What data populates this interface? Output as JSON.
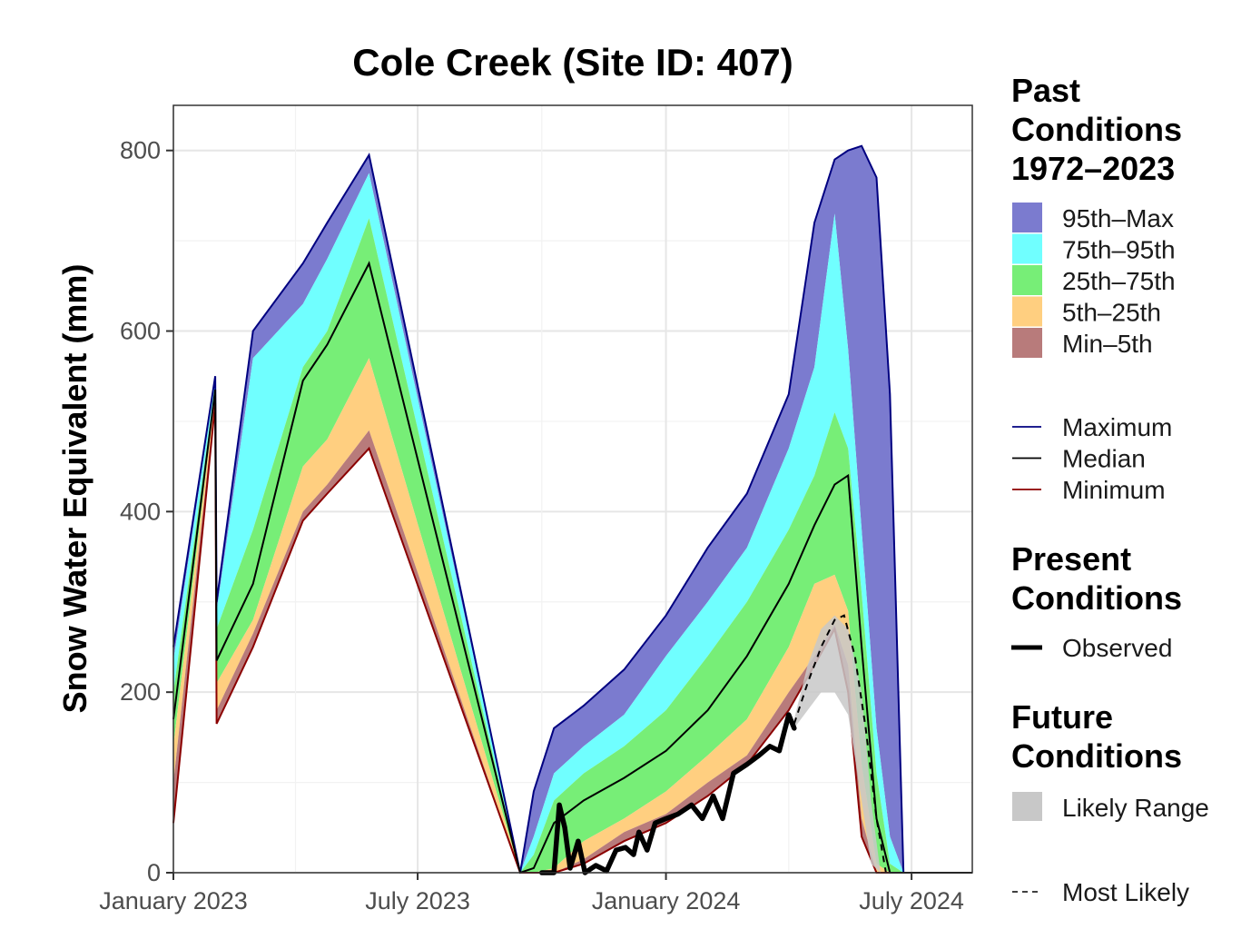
{
  "chart_data": {
    "type": "area",
    "title": "Cole Creek (Site ID: 407)",
    "ylabel": "Snow Water Equivalent (mm)",
    "xlabel": "",
    "x_start": "2023-01-01",
    "x_end": "2024-08-15",
    "ylim": [
      0,
      850
    ],
    "yticks": [
      0,
      200,
      400,
      600,
      800
    ],
    "xticks": [
      {
        "date": "2023-01-01",
        "label": "January 2023"
      },
      {
        "date": "2023-07-01",
        "label": "July 2023"
      },
      {
        "date": "2024-01-01",
        "label": "January 2024"
      },
      {
        "date": "2024-07-01",
        "label": "July 2024"
      }
    ],
    "grid": true,
    "legend_placement": "right",
    "colors": {
      "max_band": "#7B7BCF",
      "p95_band": "#70FFFF",
      "iqr_band": "#77EE77",
      "p5_band": "#FFCF80",
      "min_band": "#B87B7B",
      "likely_range": "#C8C8C8",
      "maximum_line": "#000080",
      "median_line": "#000000",
      "minimum_line": "#8B0000",
      "observed_line": "#000000"
    },
    "past_percentiles": {
      "dates": [
        "2023-01-01",
        "2023-02-01",
        "2023-02-02",
        "2023-03-01",
        "2023-04-07",
        "2023-04-25",
        "2023-05-26",
        "2023-09-15",
        "2023-09-25",
        "2023-10-10",
        "2023-11-01",
        "2023-12-01",
        "2024-01-01",
        "2024-02-01",
        "2024-03-01",
        "2024-04-01",
        "2024-04-20",
        "2024-05-05",
        "2024-05-15",
        "2024-05-25",
        "2024-06-05",
        "2024-06-15",
        "2024-06-25",
        "2024-07-05",
        "2024-08-15"
      ],
      "maximum": [
        250,
        550,
        300,
        600,
        675,
        720,
        795,
        0,
        90,
        160,
        185,
        225,
        285,
        360,
        420,
        530,
        720,
        790,
        800,
        805,
        770,
        530,
        0,
        0,
        0
      ],
      "p95": [
        235,
        545,
        290,
        570,
        630,
        680,
        775,
        0,
        40,
        110,
        140,
        175,
        240,
        300,
        360,
        470,
        560,
        730,
        580,
        380,
        160,
        40,
        0,
        0,
        0
      ],
      "p75": [
        200,
        540,
        270,
        380,
        560,
        600,
        725,
        0,
        20,
        80,
        110,
        140,
        180,
        240,
        300,
        380,
        440,
        510,
        470,
        310,
        110,
        10,
        0,
        0,
        0
      ],
      "median": [
        170,
        535,
        235,
        320,
        545,
        585,
        675,
        0,
        5,
        55,
        80,
        105,
        135,
        180,
        240,
        320,
        385,
        430,
        440,
        250,
        60,
        0,
        0,
        0,
        0
      ],
      "p25": [
        140,
        530,
        210,
        280,
        450,
        480,
        570,
        0,
        0,
        5,
        35,
        60,
        90,
        130,
        170,
        250,
        320,
        330,
        290,
        120,
        10,
        0,
        0,
        0,
        0
      ],
      "p5": [
        100,
        525,
        180,
        265,
        400,
        430,
        490,
        0,
        0,
        0,
        15,
        45,
        65,
        100,
        130,
        200,
        240,
        275,
        230,
        60,
        0,
        0,
        0,
        0,
        0
      ],
      "minimum": [
        55,
        520,
        165,
        250,
        390,
        420,
        470,
        0,
        0,
        0,
        10,
        35,
        55,
        85,
        120,
        180,
        230,
        270,
        200,
        40,
        0,
        0,
        0,
        0,
        0
      ]
    },
    "observed": {
      "dates": [
        "2023-10-01",
        "2023-10-10",
        "2023-10-14",
        "2023-10-18",
        "2023-10-22",
        "2023-10-28",
        "2023-11-02",
        "2023-11-10",
        "2023-11-18",
        "2023-11-25",
        "2023-12-02",
        "2023-12-08",
        "2023-12-12",
        "2023-12-18",
        "2023-12-24",
        "2024-01-01",
        "2024-01-10",
        "2024-01-20",
        "2024-01-28",
        "2024-02-05",
        "2024-02-12",
        "2024-02-20",
        "2024-03-01",
        "2024-03-10",
        "2024-03-18",
        "2024-03-25",
        "2024-04-01",
        "2024-04-05"
      ],
      "values": [
        0,
        0,
        75,
        50,
        5,
        35,
        0,
        8,
        2,
        25,
        28,
        20,
        45,
        25,
        55,
        60,
        65,
        75,
        60,
        85,
        60,
        110,
        120,
        130,
        140,
        135,
        175,
        160
      ]
    },
    "likely_range": {
      "dates": [
        "2024-04-05",
        "2024-04-15",
        "2024-04-25",
        "2024-05-05",
        "2024-05-15",
        "2024-05-25",
        "2024-06-01",
        "2024-06-08"
      ],
      "upper": [
        170,
        230,
        270,
        285,
        270,
        200,
        80,
        0
      ],
      "lower": [
        160,
        180,
        200,
        200,
        175,
        80,
        10,
        0
      ]
    },
    "most_likely": {
      "dates": [
        "2024-04-05",
        "2024-04-15",
        "2024-04-25",
        "2024-05-05",
        "2024-05-12",
        "2024-05-20",
        "2024-05-28",
        "2024-06-05",
        "2024-06-12"
      ],
      "values": [
        165,
        210,
        250,
        280,
        285,
        240,
        160,
        60,
        0
      ]
    }
  },
  "legend": {
    "past_title": "Past\nConditions\n1972–2023",
    "bands": [
      {
        "label": "95th–Max",
        "color": "#7B7BCF"
      },
      {
        "label": "75th–95th",
        "color": "#70FFFF"
      },
      {
        "label": "25th–75th",
        "color": "#77EE77"
      },
      {
        "label": "5th–25th",
        "color": "#FFCF80"
      },
      {
        "label": "Min–5th",
        "color": "#B87B7B"
      }
    ],
    "lines": [
      {
        "label": "Maximum",
        "color": "#000080"
      },
      {
        "label": "Median",
        "color": "#000000"
      },
      {
        "label": "Minimum",
        "color": "#8B0000"
      }
    ],
    "present_title": "Present\nConditions",
    "observed_label": "Observed",
    "future_title": "Future\nConditions",
    "likely_range_label": "Likely Range",
    "most_likely_label": "Most Likely"
  }
}
